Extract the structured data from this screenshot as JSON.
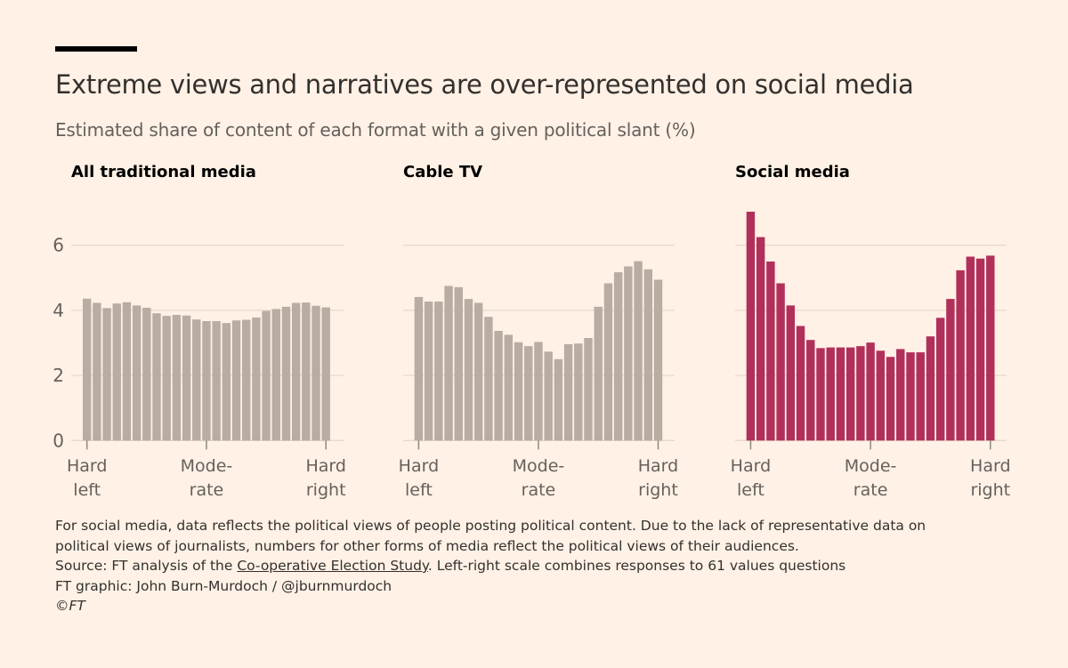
{
  "title": "Extreme views and narratives are over-represented on social media",
  "subtitle": "Estimated share of content of each format with a given political slant (%)",
  "colors": {
    "background": "#FFF1E5",
    "traditional": "#B8ACA3",
    "social": "#B1305B",
    "grid": "#E6D9CE"
  },
  "chart_data": [
    {
      "type": "bar",
      "title": "All traditional media",
      "ylim": [
        0,
        7
      ],
      "yticks": [
        "0",
        "2",
        "4",
        "6"
      ],
      "xtick_labels": [
        [
          "Hard",
          "left"
        ],
        [
          "Mode-",
          "rate"
        ],
        [
          "Hard",
          "right"
        ]
      ],
      "grid": true,
      "color": "#B8ACA3",
      "values": [
        4.36,
        4.23,
        4.07,
        4.21,
        4.25,
        4.15,
        4.08,
        3.91,
        3.83,
        3.86,
        3.84,
        3.72,
        3.67,
        3.67,
        3.61,
        3.69,
        3.71,
        3.78,
        3.98,
        4.04,
        4.11,
        4.23,
        4.24,
        4.14,
        4.09
      ]
    },
    {
      "type": "bar",
      "title": "Cable TV",
      "ylim": [
        0,
        7
      ],
      "xtick_labels": [
        [
          "Hard",
          "left"
        ],
        [
          "Mode-",
          "rate"
        ],
        [
          "Hard",
          "right"
        ]
      ],
      "grid": true,
      "color": "#B8ACA3",
      "values": [
        4.41,
        4.27,
        4.27,
        4.75,
        4.71,
        4.35,
        4.23,
        3.8,
        3.37,
        3.25,
        3.02,
        2.9,
        3.03,
        2.73,
        2.5,
        2.96,
        2.98,
        3.15,
        4.11,
        4.83,
        5.17,
        5.35,
        5.51,
        5.26,
        4.94
      ]
    },
    {
      "type": "bar",
      "title": "Social media",
      "ylim": [
        0,
        7
      ],
      "xtick_labels": [
        [
          "Hard",
          "left"
        ],
        [
          "Mode-",
          "rate"
        ],
        [
          "Hard",
          "right"
        ]
      ],
      "grid": true,
      "color": "#B1305B",
      "values": [
        7.03,
        6.25,
        5.5,
        4.83,
        4.15,
        3.52,
        3.09,
        2.84,
        2.86,
        2.86,
        2.86,
        2.9,
        3.01,
        2.76,
        2.57,
        2.81,
        2.71,
        2.71,
        3.2,
        3.77,
        4.35,
        5.23,
        5.65,
        5.59,
        5.68
      ]
    }
  ],
  "footer": {
    "note_line1": "For social media, data reflects the political views of people posting political content. Due to the lack of representative data on",
    "note_line2": "political views of journalists, numbers for other forms of media reflect the political views of their audiences.",
    "source_prefix": "Source: FT analysis of the ",
    "source_link": "Co-operative Election Study",
    "source_suffix": ". Left-right scale combines responses to 61 values questions",
    "credit": "FT graphic: John Burn-Murdoch / @jburnmurdoch",
    "copyright": "©FT"
  }
}
